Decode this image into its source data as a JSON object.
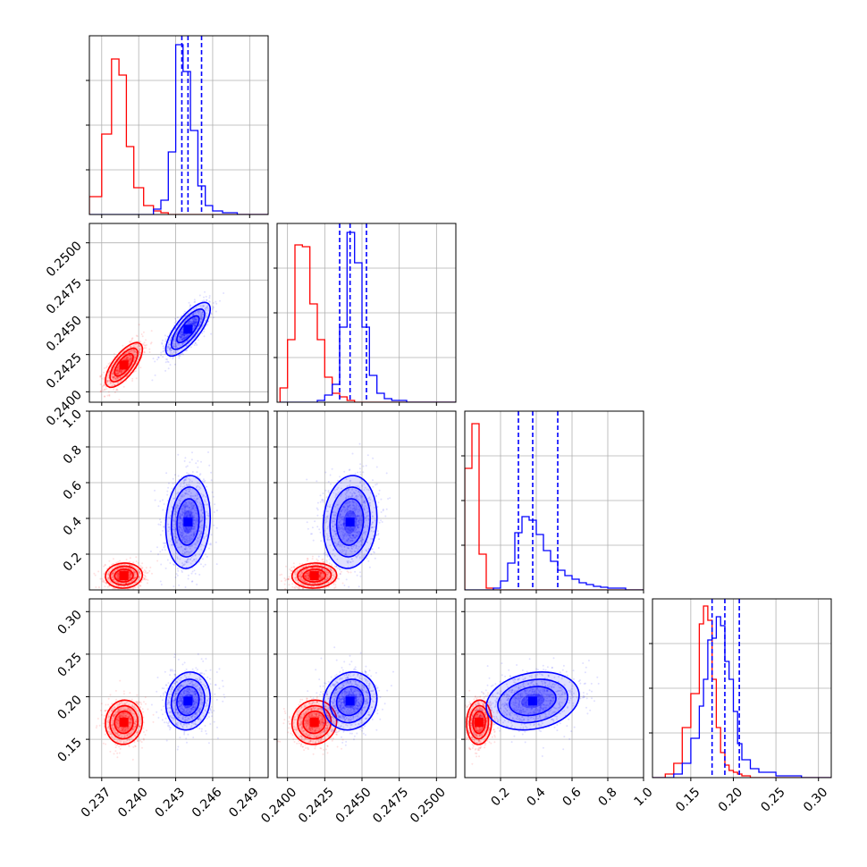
{
  "chart_data": {
    "type": "corner",
    "grid": true,
    "colors": {
      "a": "#ff0000",
      "b": "#0000ff"
    },
    "params": [
      {
        "range": [
          0.236,
          0.2505
        ],
        "ticks": [
          0.237,
          0.24,
          0.243,
          0.246,
          0.249
        ],
        "tick_labels": [
          "0.237",
          "0.240",
          "0.243",
          "0.246",
          "0.249"
        ]
      },
      {
        "range": [
          0.2393,
          0.2513
        ],
        "ticks": [
          0.24,
          0.2425,
          0.245,
          0.2475,
          0.25
        ],
        "tick_labels": [
          "0.2400",
          "0.2425",
          "0.2450",
          "0.2475",
          "0.2500"
        ]
      },
      {
        "range": [
          0.0,
          1.0
        ],
        "ticks": [
          0.2,
          0.4,
          0.6,
          0.8,
          1.0
        ],
        "tick_labels": [
          "0.2",
          "0.4",
          "0.6",
          "0.8",
          "1.0"
        ]
      },
      {
        "range": [
          0.105,
          0.315
        ],
        "ticks": [
          0.15,
          0.2,
          0.25,
          0.3
        ],
        "tick_labels": [
          "0.15",
          "0.20",
          "0.25",
          "0.30"
        ]
      }
    ],
    "series": [
      {
        "key": "a",
        "mean": [
          0.2388,
          0.2418,
          0.08,
          0.17
        ],
        "sd": [
          0.00075,
          0.00075,
          0.035,
          0.013
        ],
        "corr": [
          [
            1,
            0.7,
            0.05,
            0.05
          ],
          [
            0.7,
            1,
            0.05,
            0.05
          ],
          [
            0.05,
            0.05,
            1,
            0.05
          ],
          [
            0.05,
            0.05,
            0.05,
            1
          ]
        ]
      },
      {
        "key": "b",
        "mean": [
          0.244,
          0.2442,
          0.38,
          0.195
        ],
        "sd": [
          0.0009,
          0.0009,
          0.13,
          0.017
        ],
        "corr": [
          [
            1,
            0.75,
            0.1,
            0.1
          ],
          [
            0.75,
            1,
            0.1,
            0.1
          ],
          [
            0.1,
            0.1,
            1,
            0.2
          ],
          [
            0.1,
            0.1,
            0.2,
            1
          ]
        ],
        "quantiles": [
          [
            0.2435,
            0.244,
            0.2451
          ],
          [
            0.2435,
            0.2442,
            0.2453
          ],
          [
            0.3,
            0.38,
            0.52
          ],
          [
            0.175,
            0.19,
            0.207
          ]
        ]
      }
    ],
    "marginal_hist": [
      {
        "edges": [
          0.236,
          0.237,
          0.2378,
          0.2384,
          0.239,
          0.2396,
          0.2404,
          0.2412,
          0.2418,
          0.2424,
          0.243,
          0.2436,
          0.2442,
          0.2448,
          0.2454,
          0.246,
          0.2468,
          0.248,
          0.2505
        ],
        "a": [
          0.1,
          0.45,
          0.87,
          0.78,
          0.38,
          0.15,
          0.05,
          0.02,
          0.01,
          0,
          0,
          0,
          0,
          0,
          0,
          0,
          0,
          0
        ],
        "b": [
          0,
          0,
          0,
          0,
          0,
          0,
          0,
          0.03,
          0.08,
          0.35,
          0.95,
          0.8,
          0.47,
          0.16,
          0.05,
          0.02,
          0.01,
          0
        ]
      },
      {
        "edges": [
          0.2395,
          0.24,
          0.2405,
          0.241,
          0.2415,
          0.242,
          0.2425,
          0.243,
          0.2435,
          0.244,
          0.2445,
          0.245,
          0.2455,
          0.246,
          0.2465,
          0.247,
          0.248,
          0.2513
        ],
        "a": [
          0.08,
          0.35,
          0.88,
          0.87,
          0.55,
          0.35,
          0.14,
          0.05,
          0.03,
          0.01,
          0,
          0,
          0,
          0,
          0,
          0,
          0
        ],
        "b": [
          0,
          0,
          0,
          0,
          0,
          0.01,
          0.04,
          0.1,
          0.42,
          0.95,
          0.78,
          0.42,
          0.15,
          0.05,
          0.02,
          0.01,
          0
        ]
      },
      {
        "edges": [
          0.0,
          0.04,
          0.08,
          0.12,
          0.16,
          0.2,
          0.24,
          0.28,
          0.32,
          0.36,
          0.4,
          0.44,
          0.48,
          0.52,
          0.56,
          0.6,
          0.64,
          0.68,
          0.72,
          0.76,
          0.8,
          0.9,
          1.0
        ],
        "a": [
          0.68,
          0.93,
          0.2,
          0.01,
          0,
          0,
          0,
          0,
          0,
          0,
          0,
          0,
          0,
          0,
          0,
          0,
          0,
          0,
          0,
          0,
          0,
          0
        ],
        "b": [
          0,
          0,
          0,
          0,
          0.01,
          0.05,
          0.15,
          0.32,
          0.41,
          0.39,
          0.31,
          0.22,
          0.16,
          0.11,
          0.08,
          0.06,
          0.04,
          0.03,
          0.02,
          0.015,
          0.01,
          0
        ]
      },
      {
        "edges": [
          0.105,
          0.12,
          0.13,
          0.14,
          0.15,
          0.16,
          0.165,
          0.17,
          0.175,
          0.18,
          0.185,
          0.19,
          0.195,
          0.2,
          0.205,
          0.21,
          0.22,
          0.23,
          0.25,
          0.28,
          0.315
        ],
        "a": [
          0,
          0.02,
          0.08,
          0.28,
          0.47,
          0.86,
          0.96,
          0.88,
          0.55,
          0.28,
          0.14,
          0.07,
          0.04,
          0.03,
          0.02,
          0.01,
          0,
          0,
          0,
          0
        ],
        "b": [
          0,
          0,
          0.02,
          0.08,
          0.22,
          0.4,
          0.55,
          0.77,
          0.78,
          0.9,
          0.85,
          0.65,
          0.55,
          0.37,
          0.19,
          0.1,
          0.05,
          0.03,
          0.01,
          0
        ]
      }
    ]
  }
}
